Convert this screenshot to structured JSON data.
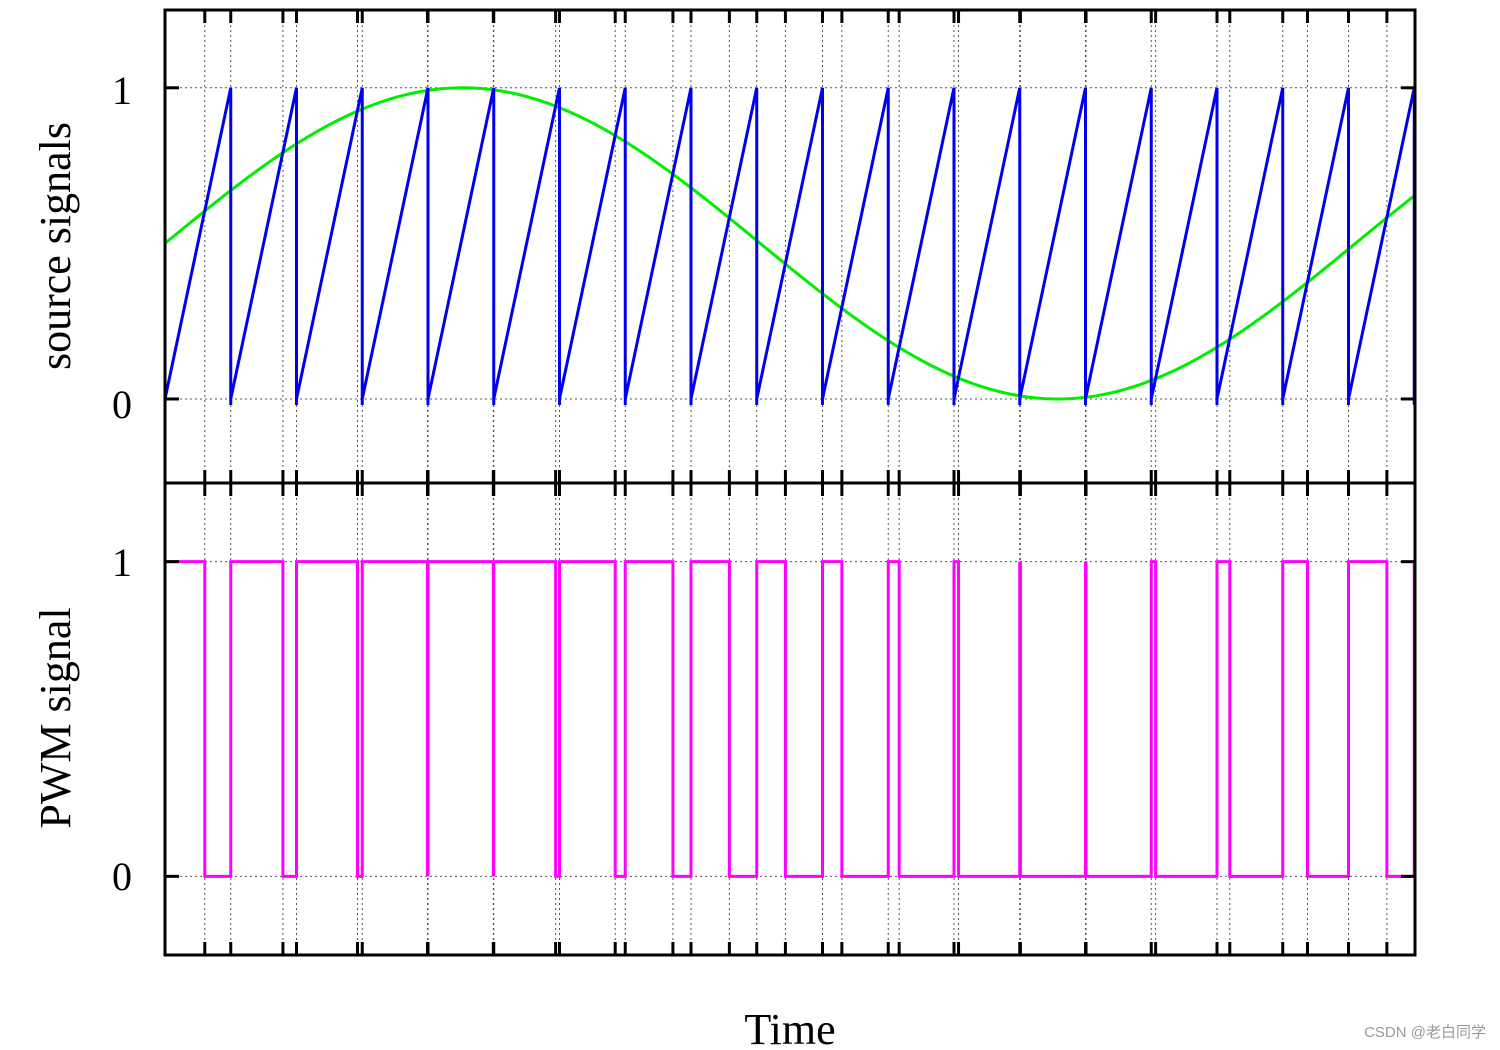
{
  "chart_data": [
    {
      "type": "line",
      "ylabel": "source signals",
      "xlabel": "",
      "ylim": [
        -0.27,
        1.25
      ],
      "xlim": [
        0,
        1
      ],
      "yticks": [
        0,
        1
      ],
      "ytick_labels": [
        "0",
        "1"
      ],
      "grid": true,
      "series": [
        {
          "key": "carrier",
          "kind": "sawtooth",
          "color": "#0000ee",
          "period": 0.0526,
          "phase": 0.0526,
          "min": 0,
          "max": 1
        },
        {
          "key": "reference",
          "kind": "sine",
          "color": "#00ee00",
          "offset": 0.5,
          "amplitude": 0.5,
          "cycles": 1.05
        }
      ]
    },
    {
      "type": "line",
      "ylabel": "PWM signal",
      "xlabel": "Time",
      "ylim": [
        -0.25,
        1.25
      ],
      "xlim": [
        0,
        1
      ],
      "yticks": [
        0,
        1
      ],
      "ytick_labels": [
        "0",
        "1"
      ],
      "grid": true,
      "series": [
        {
          "key": "pwm",
          "kind": "step",
          "color": "#ff00ff",
          "derived_from": [
            "reference",
            "carrier"
          ]
        }
      ]
    }
  ],
  "watermark": "CSDN @老白同学"
}
